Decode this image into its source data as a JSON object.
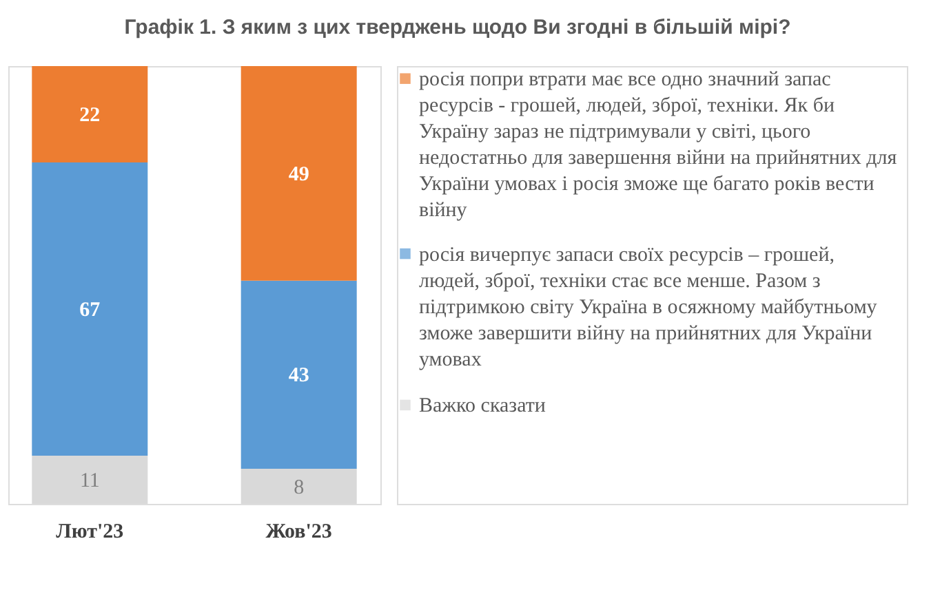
{
  "chart_data": {
    "type": "bar",
    "title": "Графік 1. З яким з цих тверджень щодо Ви згодні в більшій мірі?",
    "categories": [
      "Лют'23",
      "Жов'23"
    ],
    "stacked": true,
    "data_labels": true,
    "legend": "right",
    "series": [
      {
        "name": "Важко сказати",
        "color": "#d9d9d9",
        "values": [
          11,
          8
        ]
      },
      {
        "name": "росія вичерпує запаси своїх ресурсів – грошей, людей, зброї, техніки стає все менше. Разом з підтримкою світу Україна в осяжному майбутньому зможе завершити війну на прийнятних для України умовах",
        "color": "#5b9bd5",
        "values": [
          67,
          43
        ]
      },
      {
        "name": "росія попри втрати має все одно значний запас ресурсів - грошей, людей, зброї, техніки. Як би Україну зараз не підтримували у світі, цього недостатньо для завершення війни на прийнятних для України умовах і росія зможе ще багато років вести війну",
        "color": "#ed7d31",
        "values": [
          22,
          49
        ]
      }
    ]
  }
}
